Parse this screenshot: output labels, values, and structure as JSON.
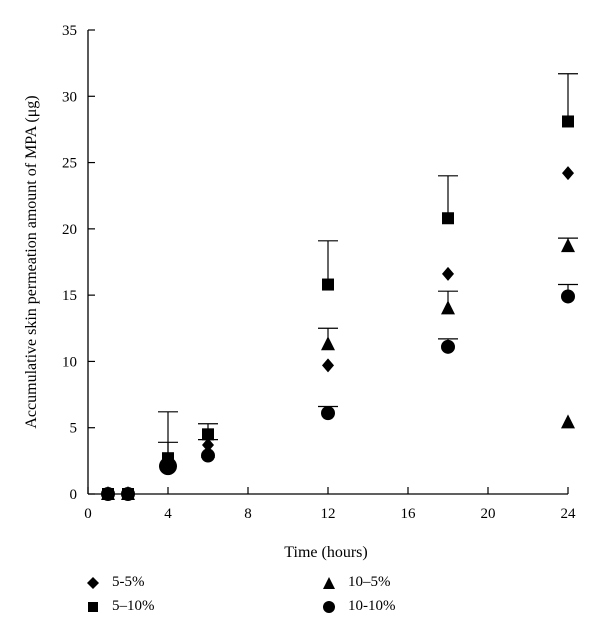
{
  "chart_data": {
    "type": "scatter",
    "title": "",
    "xlabel": "Time (hours)",
    "ylabel": "Accumulative skin permeation amount of MPA (μg)",
    "xlim": [
      0,
      24
    ],
    "ylim": [
      0,
      35
    ],
    "x_ticks": [
      0,
      4,
      8,
      12,
      16,
      20,
      24
    ],
    "y_ticks": [
      0,
      5,
      10,
      15,
      20,
      25,
      30,
      35
    ],
    "legend_placement": "bottom",
    "series": [
      {
        "name": "5-5%",
        "marker": "diamond",
        "points": [
          {
            "x": 1,
            "y": 0.0
          },
          {
            "x": 2,
            "y": 0.0
          },
          {
            "x": 4,
            "y": 2.4
          },
          {
            "x": 6,
            "y": 3.7,
            "err": 0.4
          },
          {
            "x": 12,
            "y": 9.7
          },
          {
            "x": 18,
            "y": 16.6
          },
          {
            "x": 24,
            "y": 24.2
          }
        ]
      },
      {
        "name": "5–10%",
        "marker": "square",
        "points": [
          {
            "x": 1,
            "y": 0.0
          },
          {
            "x": 2,
            "y": 0.0
          },
          {
            "x": 4,
            "y": 2.7,
            "err": 3.5
          },
          {
            "x": 6,
            "y": 4.5
          },
          {
            "x": 12,
            "y": 15.8,
            "err": 3.3
          },
          {
            "x": 18,
            "y": 20.8,
            "err": 3.2
          },
          {
            "x": 24,
            "y": 28.1,
            "err": 3.6
          }
        ]
      },
      {
        "name": "10–5%",
        "marker": "triangle",
        "points": [
          {
            "x": 1,
            "y": 0.0
          },
          {
            "x": 2,
            "y": 0.0
          },
          {
            "x": 4,
            "y": 2.3
          },
          {
            "x": 6,
            "y": 3.2
          },
          {
            "x": 12,
            "y": 11.3,
            "err": 1.2
          },
          {
            "x": 18,
            "y": 14.0,
            "err": 1.3
          },
          {
            "x": 24,
            "y": 18.7,
            "err": 0.6
          },
          {
            "x": 24,
            "y": 5.4
          }
        ]
      },
      {
        "name": "10-10%",
        "marker": "circle",
        "points": [
          {
            "x": 1,
            "y": 0.0
          },
          {
            "x": 2,
            "y": 0.0
          },
          {
            "x": 4,
            "y": 2.1,
            "err": 1.8
          },
          {
            "x": 6,
            "y": 2.9,
            "err": 2.4
          },
          {
            "x": 12,
            "y": 6.1,
            "err": 0.5
          },
          {
            "x": 18,
            "y": 11.1,
            "err": 0.6
          },
          {
            "x": 24,
            "y": 14.9,
            "err": 0.9
          }
        ]
      }
    ]
  }
}
